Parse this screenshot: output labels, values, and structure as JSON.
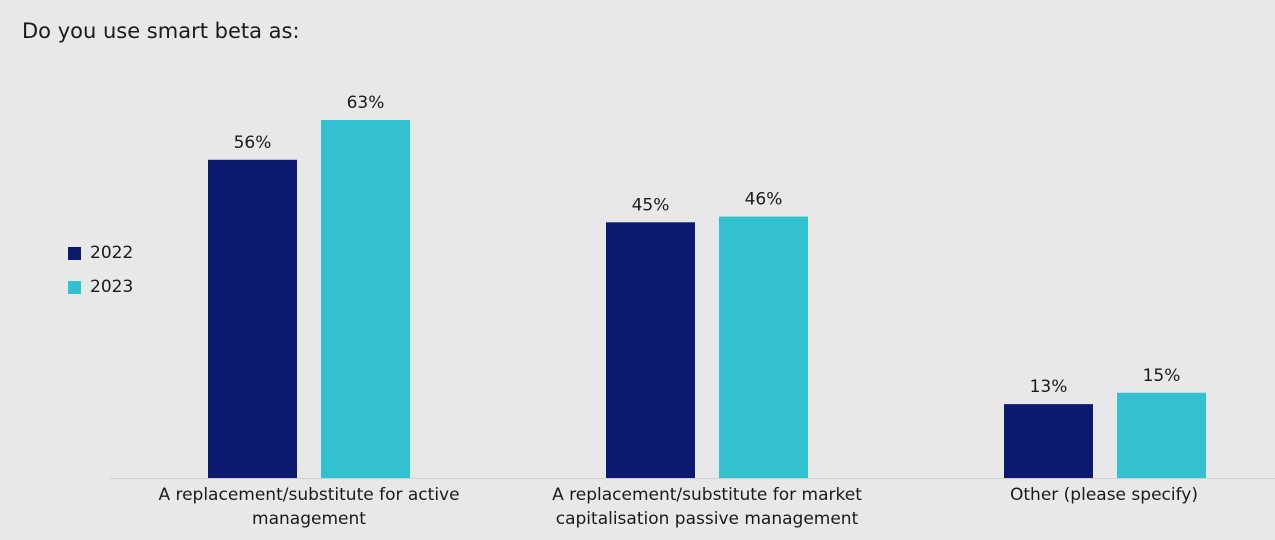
{
  "chart_data": {
    "type": "bar",
    "title": "Do you use smart beta as:",
    "categories": [
      "A replacement/substitute for active management",
      "A replacement/substitute for market capitalisation passive management",
      "Other (please specify)"
    ],
    "category_lines": [
      [
        "A replacement/substitute for active",
        "management"
      ],
      [
        "A replacement/substitute for market",
        "capitalisation passive management"
      ],
      [
        "Other (please specify)"
      ]
    ],
    "series": [
      {
        "name": "2022",
        "values": [
          56,
          45,
          13
        ],
        "labels": [
          "56%",
          "45%",
          "13%"
        ],
        "color": "#0c1a6e"
      },
      {
        "name": "2023",
        "values": [
          63,
          46,
          15
        ],
        "labels": [
          "63%",
          "46%",
          "15%"
        ],
        "color": "#33c0cf"
      }
    ],
    "ylim": [
      0,
      63
    ],
    "grid": false,
    "legend_position": "left",
    "axis_line_color": "#cfcfcf"
  }
}
